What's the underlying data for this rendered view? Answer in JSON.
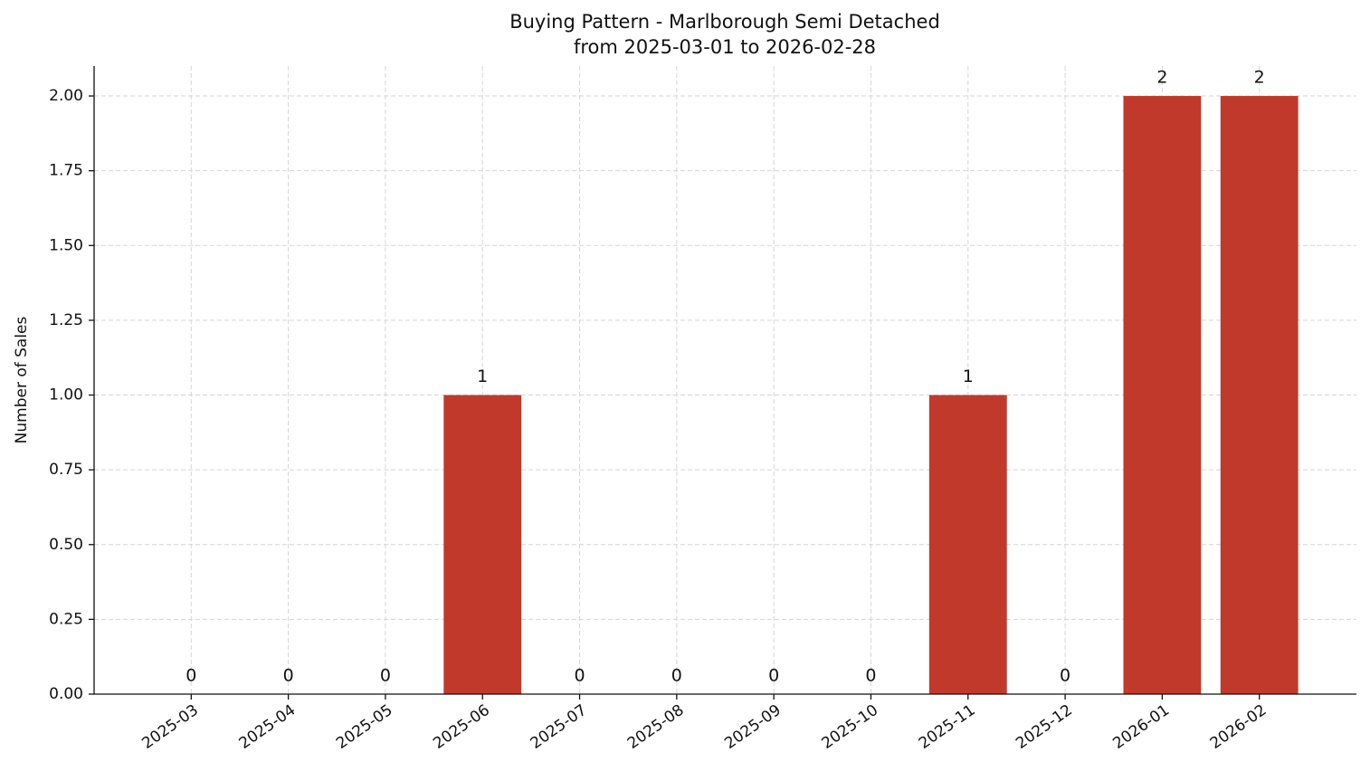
{
  "chart_data": {
    "type": "bar",
    "title": "Buying Pattern - Marlborough Semi Detached",
    "subtitle": "from 2025-03-01 to 2026-02-28",
    "y_label": "Number of Sales",
    "categories": [
      "2025-03",
      "2025-04",
      "2025-05",
      "2025-06",
      "2025-07",
      "2025-08",
      "2025-09",
      "2025-10",
      "2025-11",
      "2025-12",
      "2026-01",
      "2026-02"
    ],
    "values": [
      0,
      0,
      0,
      1,
      0,
      0,
      0,
      0,
      1,
      0,
      2,
      2
    ],
    "color": "#c0392b",
    "ylim": [
      0,
      2.1
    ],
    "yticks": [
      {
        "value": 0,
        "label": "0.00"
      },
      {
        "value": 0.25,
        "label": "0.25"
      },
      {
        "value": 0.5,
        "label": "0.50"
      },
      {
        "value": 0.75,
        "label": "0.75"
      },
      {
        "value": 1,
        "label": "1.00"
      },
      {
        "value": 1.25,
        "label": "1.25"
      },
      {
        "value": 1.5,
        "label": "1.50"
      },
      {
        "value": 1.75,
        "label": "1.75"
      },
      {
        "value": 2,
        "label": "2.00"
      }
    ],
    "grid": true
  }
}
